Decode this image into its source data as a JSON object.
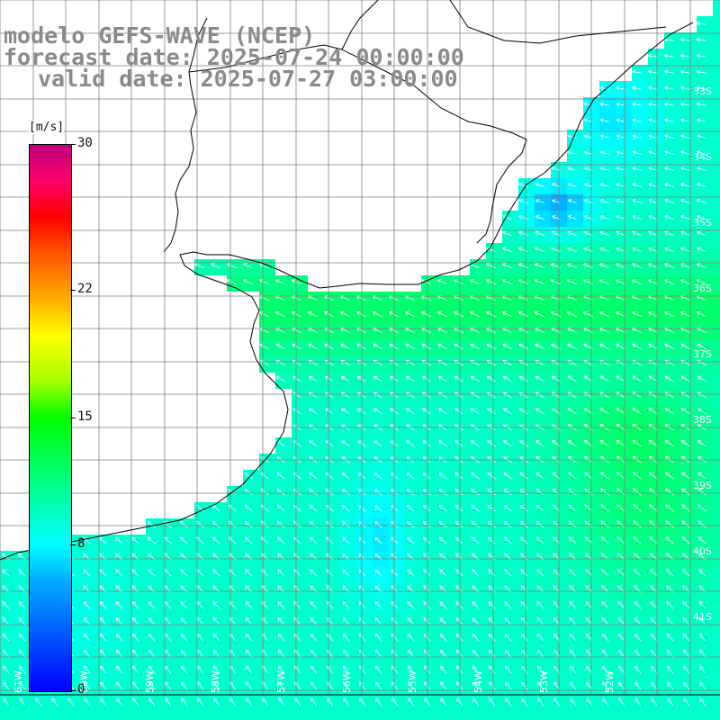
{
  "title": {
    "line1": "modelo GEFS-WAVE (NCEP)",
    "line2": "forecast date: 2025-07-24 00:00:00",
    "line3": "valid date: 2025-07-27 03:00:00"
  },
  "colorbar": {
    "unit": "[m/s]",
    "ticks": [
      {
        "label": "30",
        "value": 30
      },
      {
        "label": "22",
        "value": 22
      },
      {
        "label": "15",
        "value": 15
      },
      {
        "label": "8",
        "value": 8
      },
      {
        "label": "0",
        "value": 0
      }
    ],
    "min": 0,
    "max": 30
  },
  "lat_labels": [
    "33S",
    "34S",
    "35S",
    "36S",
    "37S",
    "38S",
    "39S",
    "40S",
    "41S"
  ],
  "lon_labels": [
    "61W",
    "60W",
    "59W",
    "58W",
    "57W",
    "56W",
    "55W",
    "54W",
    "53W",
    "52W"
  ],
  "colors": {
    "land": "#ffffff",
    "grid": "#808080",
    "coast": "#000000",
    "arrow": "#ffffff",
    "title": "#8a8a8a"
  }
}
